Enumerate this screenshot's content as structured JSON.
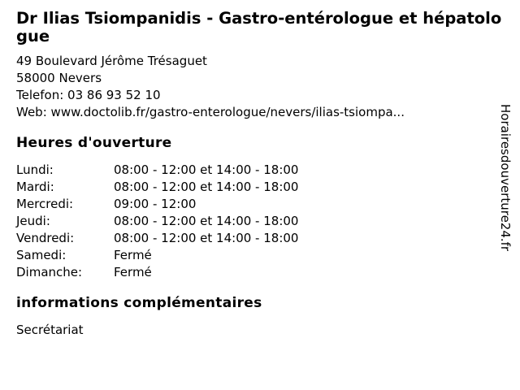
{
  "page": {
    "title": "Dr Ilias Tsiompanidis - Gastro-entérologue et hépatologue",
    "watermark": "Horairesdouverture24.fr"
  },
  "colors": {
    "text": "#000000",
    "background": "#ffffff"
  },
  "contact": {
    "address_line1": "49 Boulevard Jérôme Trésaguet",
    "address_line2": "58000 Nevers",
    "phone_label": "Telefon:",
    "phone": "03 86 93 52 10",
    "web_label": "Web:",
    "web": "www.doctolib.fr/gastro-enterologue/nevers/ilias-tsiompa..."
  },
  "hours": {
    "heading": "Heures d'ouverture",
    "rows": [
      {
        "day": "Lundi:",
        "times": "08:00 - 12:00 et 14:00 - 18:00"
      },
      {
        "day": "Mardi:",
        "times": "08:00 - 12:00 et 14:00 - 18:00"
      },
      {
        "day": "Mercredi:",
        "times": "09:00 - 12:00"
      },
      {
        "day": "Jeudi:",
        "times": "08:00 - 12:00 et 14:00 - 18:00"
      },
      {
        "day": "Vendredi:",
        "times": "08:00 - 12:00 et 14:00 - 18:00"
      },
      {
        "day": "Samedi:",
        "times": "Fermé"
      },
      {
        "day": "Dimanche:",
        "times": "Fermé"
      }
    ]
  },
  "extra": {
    "heading": "informations complémentaires",
    "text": "Secrétariat"
  }
}
